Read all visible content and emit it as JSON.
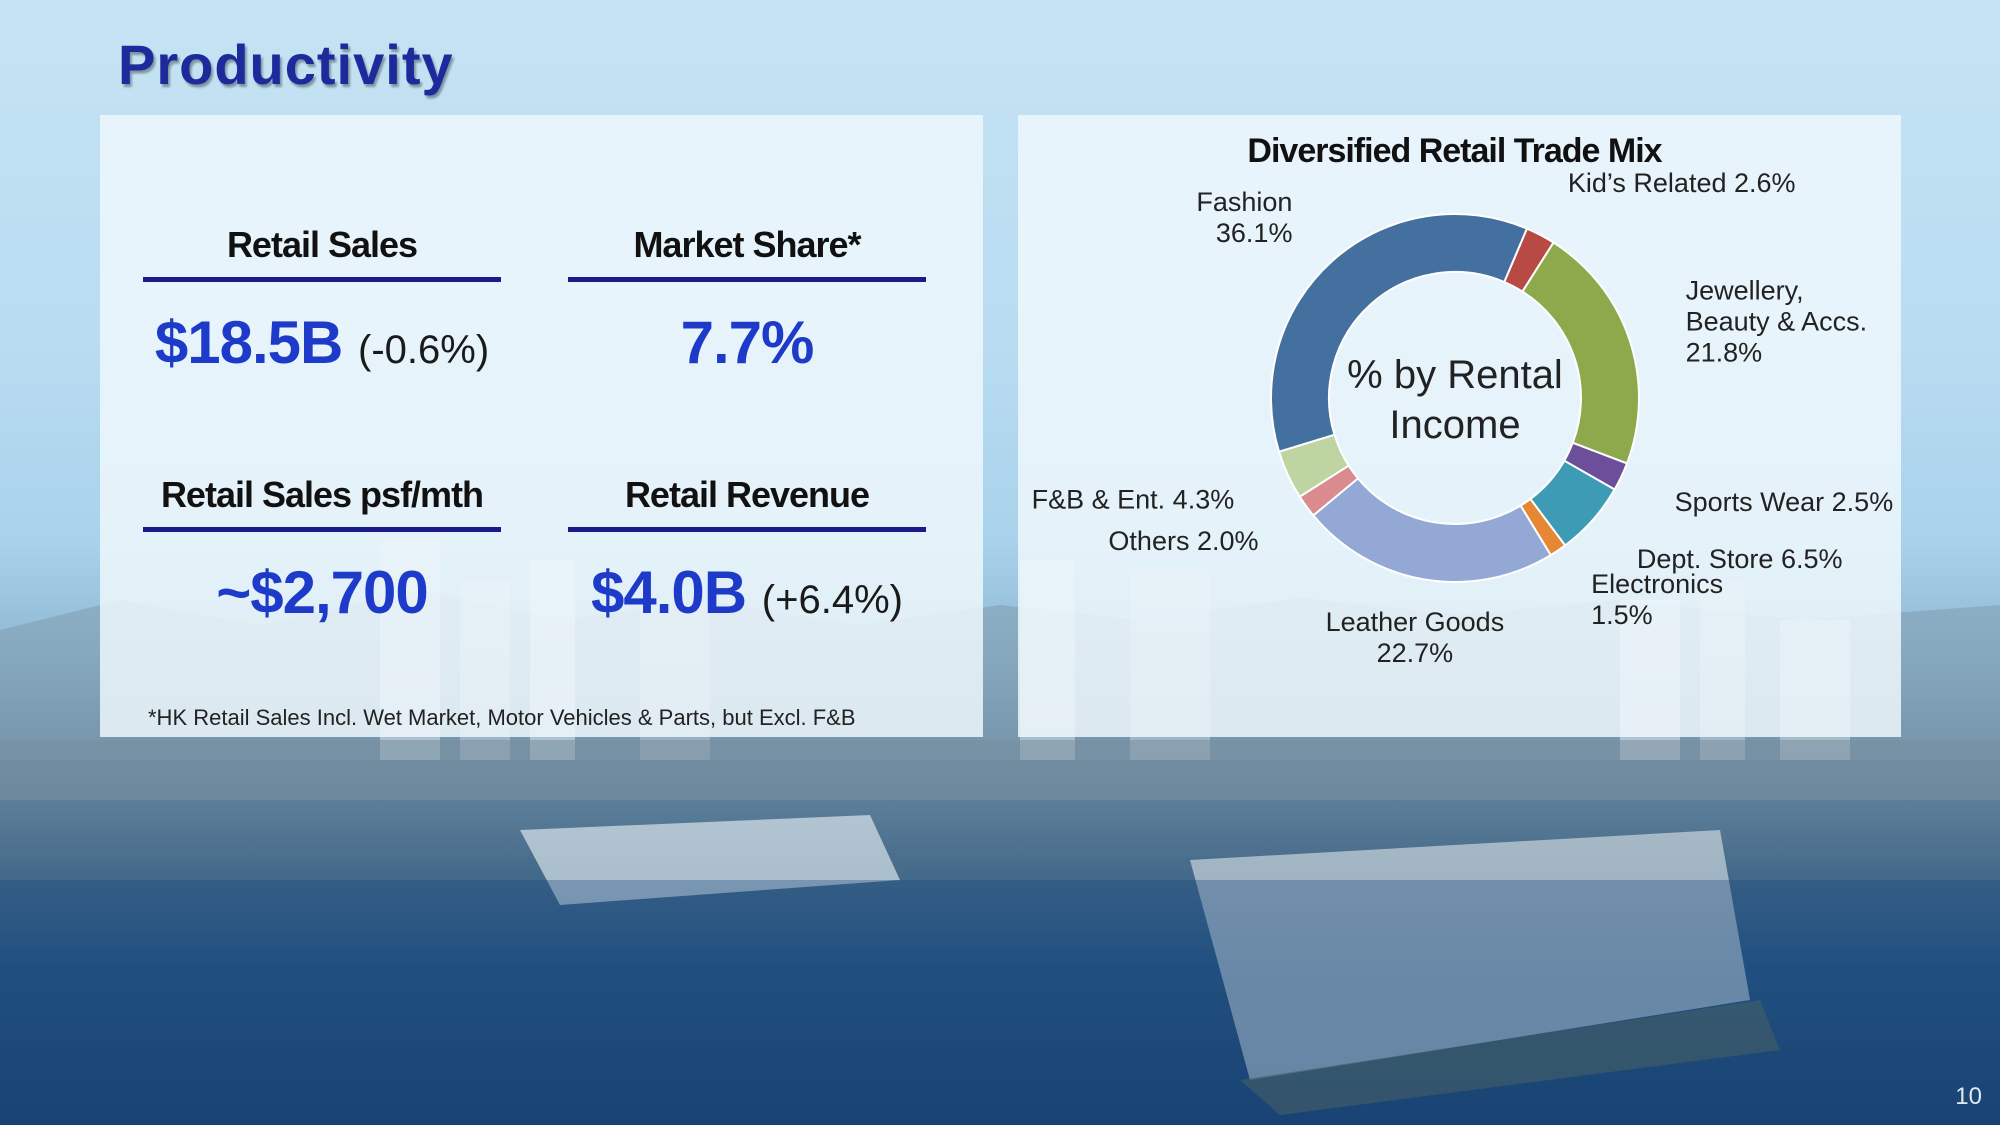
{
  "slide": {
    "title": "Productivity",
    "page_number": "10",
    "footnote": "*HK Retail Sales Incl. Wet Market, Motor Vehicles & Parts, but Excl. F&B"
  },
  "metrics": {
    "retail_sales": {
      "label": "Retail Sales",
      "value": "$18.5B",
      "change": "(-0.6%)"
    },
    "market_share": {
      "label": "Market Share*",
      "value": "7.7%"
    },
    "sales_psf": {
      "label": "Retail Sales psf/mth",
      "value": "~$2,700"
    },
    "retail_revenue": {
      "label": "Retail Revenue",
      "value": "$4.0B",
      "change": "(+6.4%)"
    }
  },
  "colors": {
    "title": "#1c2a9c",
    "metric_value": "#1d3bc8",
    "underline": "#1a1a8a"
  },
  "chart_data": {
    "type": "pie",
    "title": "Diversified Retail Trade Mix",
    "center_label_line1": "% by Rental",
    "center_label_line2": "Income",
    "slices": [
      {
        "label_lines": [
          "Kid’s Related 2.6%"
        ],
        "value": 2.6,
        "color": "#b84a45"
      },
      {
        "label_lines": [
          "Jewellery,",
          "Beauty & Accs.",
          "21.8%"
        ],
        "value": 21.8,
        "color": "#8ea84c"
      },
      {
        "label_lines": [
          "Sports Wear 2.5%"
        ],
        "value": 2.5,
        "color": "#6c4e9a"
      },
      {
        "label_lines": [
          "Dept. Store 6.5%"
        ],
        "value": 6.5,
        "color": "#3e9bb6"
      },
      {
        "label_lines": [
          "Electronics",
          "1.5%"
        ],
        "value": 1.5,
        "color": "#e58733"
      },
      {
        "label_lines": [
          "Leather Goods",
          "22.7%"
        ],
        "value": 22.7,
        "color": "#94a8d6"
      },
      {
        "label_lines": [
          "Others 2.0%"
        ],
        "value": 2.0,
        "color": "#d98b8e"
      },
      {
        "label_lines": [
          "F&B & Ent. 4.3%"
        ],
        "value": 4.3,
        "color": "#bfd5a1"
      },
      {
        "label_lines": [
          "Fashion",
          "36.1%"
        ],
        "value": 36.1,
        "color": "#44709f"
      }
    ]
  }
}
